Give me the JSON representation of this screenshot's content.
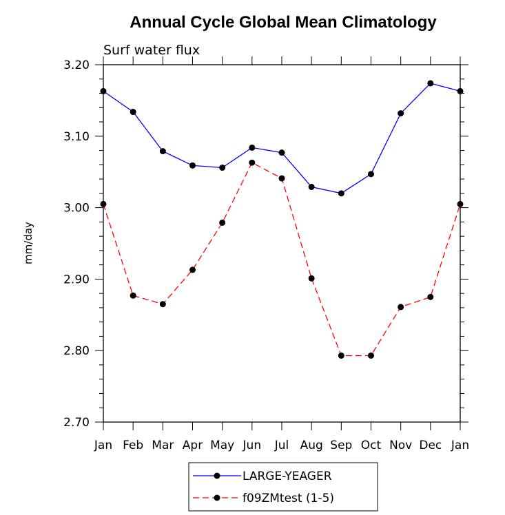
{
  "chart_data": {
    "type": "line",
    "title": "Annual Cycle Global Mean Climatology",
    "subtitle": "Surf water flux",
    "ylabel": "mm/day",
    "xlabel": "",
    "categories": [
      "Jan",
      "Feb",
      "Mar",
      "Apr",
      "May",
      "Jun",
      "Jul",
      "Aug",
      "Sep",
      "Oct",
      "Nov",
      "Dec",
      "Jan"
    ],
    "ylim": [
      2.7,
      3.2
    ],
    "yticks": [
      "2.70",
      "2.80",
      "2.90",
      "3.00",
      "3.10",
      "3.20"
    ],
    "series": [
      {
        "name": "LARGE-YEAGER",
        "color": "#0000ff",
        "dash": "solid",
        "values": [
          3.163,
          3.134,
          3.079,
          3.059,
          3.056,
          3.084,
          3.077,
          3.029,
          3.02,
          3.047,
          3.132,
          3.174,
          3.163
        ]
      },
      {
        "name": "f09ZMtest (1-5)",
        "color": "#ff0000",
        "dash": "dashed",
        "values": [
          3.005,
          2.877,
          2.865,
          2.913,
          2.979,
          3.063,
          3.041,
          2.901,
          2.793,
          2.793,
          2.861,
          2.875,
          3.005
        ]
      }
    ],
    "grid": false,
    "legend_position": "bottom"
  }
}
